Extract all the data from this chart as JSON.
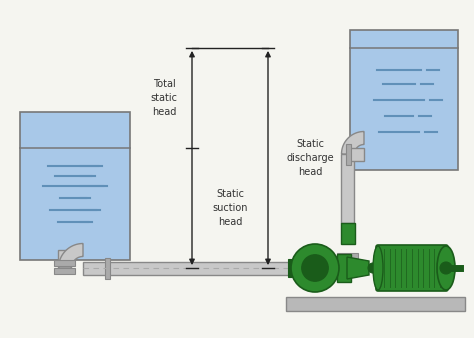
{
  "bg_color": "#f5f5f0",
  "tank_fill_color": "#a8c8e8",
  "tank_border_color": "#777777",
  "pipe_color": "#c8c8c8",
  "pipe_border_color": "#888888",
  "pump_body_color": "#2d8a2d",
  "pump_dark_color": "#1a5c1a",
  "pump_light_color": "#3aaa3a",
  "motor_color": "#2d8a2d",
  "motor_dark_color": "#1a5c1a",
  "base_color": "#b8b8b8",
  "base_border_color": "#888888",
  "arrow_color": "#222222",
  "text_color": "#333333",
  "dashed_line_color": "#aaaaaa",
  "flange_color": "#aaaaaa",
  "water_line_color": "#6090b8",
  "label_total": "Total\nstatic\nhead",
  "label_discharge": "Static\ndischarge\nhead",
  "label_suction": "Static\nsuction\nhead",
  "font_size": 7.0,
  "font_family": "DejaVu Sans"
}
